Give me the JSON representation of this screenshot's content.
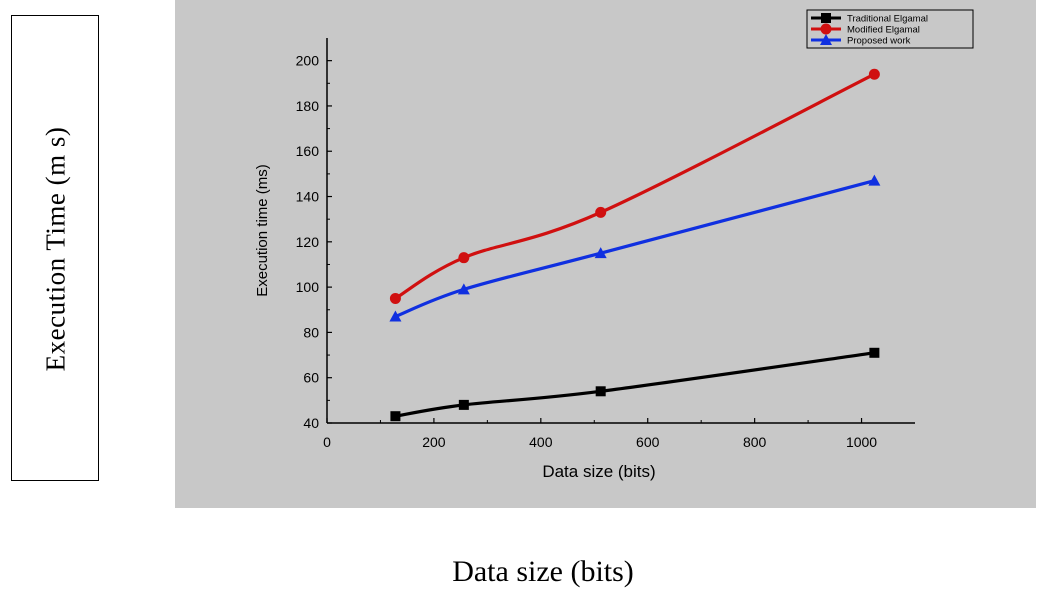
{
  "outer_labels": {
    "ylabel": "Execution Time (m s)",
    "xlabel": "Data size (bits)"
  },
  "chart_data": {
    "type": "line",
    "title": "",
    "xlabel": "Data size (bits)",
    "ylabel": "Execution time (ms)",
    "xlim": [
      0,
      1100
    ],
    "ylim": [
      40,
      210
    ],
    "x_ticks": [
      0,
      200,
      400,
      600,
      800,
      1000
    ],
    "y_ticks": [
      40,
      60,
      80,
      100,
      120,
      140,
      160,
      180,
      200
    ],
    "grid": false,
    "legend_position": "top-right",
    "x": [
      128,
      256,
      512,
      1024
    ],
    "series": [
      {
        "name": "Traditional Elgamal",
        "color": "#000000",
        "marker": "square",
        "values": [
          43,
          48,
          54,
          71
        ]
      },
      {
        "name": "Modified Elgamal",
        "color": "#d01010",
        "marker": "circle",
        "values": [
          95,
          113,
          133,
          194
        ]
      },
      {
        "name": "Proposed work",
        "color": "#1030e0",
        "marker": "triangle",
        "values": [
          87,
          99,
          115,
          147
        ]
      }
    ]
  }
}
